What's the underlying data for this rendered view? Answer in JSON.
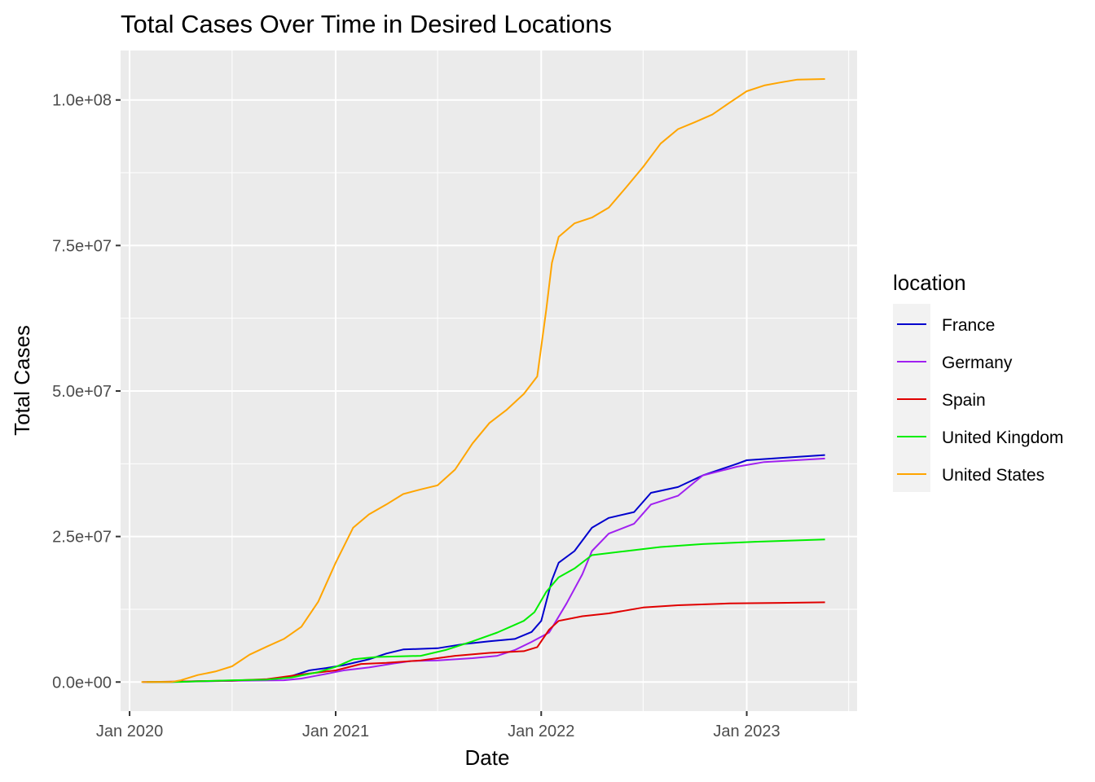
{
  "chart_data": {
    "type": "line",
    "title": "Total Cases Over Time in Desired Locations",
    "xlabel": "Date",
    "ylabel": "Total Cases",
    "x_ticks": [
      "Jan 2020",
      "Jan 2021",
      "Jan 2022",
      "Jan 2023"
    ],
    "y_ticks": [
      "0.0e+00",
      "2.5e+07",
      "5.0e+07",
      "7.5e+07",
      "1.0e+08"
    ],
    "y_tick_values": [
      0,
      25000000,
      50000000,
      75000000,
      100000000
    ],
    "xlim": [
      "2019-12-16",
      "2023-07-16"
    ],
    "ylim": [
      -5000000,
      108500000
    ],
    "grid": true,
    "panel_background": "#ebebeb",
    "legend": {
      "title": "location",
      "position": "right"
    },
    "series": [
      {
        "name": "France",
        "color": "#0000cd",
        "points": [
          [
            "2020-01-24",
            0
          ],
          [
            "2020-03-15",
            5000
          ],
          [
            "2020-05-01",
            150000
          ],
          [
            "2020-07-01",
            200000
          ],
          [
            "2020-09-01",
            400000
          ],
          [
            "2020-10-01",
            700000
          ],
          [
            "2020-10-20",
            1200000
          ],
          [
            "2020-11-15",
            2000000
          ],
          [
            "2020-12-15",
            2400000
          ],
          [
            "2021-01-15",
            2900000
          ],
          [
            "2021-03-01",
            3900000
          ],
          [
            "2021-04-01",
            4900000
          ],
          [
            "2021-05-01",
            5600000
          ],
          [
            "2021-07-01",
            5800000
          ],
          [
            "2021-08-15",
            6500000
          ],
          [
            "2021-10-01",
            7000000
          ],
          [
            "2021-11-15",
            7400000
          ],
          [
            "2021-12-15",
            8600000
          ],
          [
            "2022-01-01",
            10500000
          ],
          [
            "2022-01-20",
            17500000
          ],
          [
            "2022-02-01",
            20500000
          ],
          [
            "2022-03-01",
            22500000
          ],
          [
            "2022-04-01",
            26500000
          ],
          [
            "2022-05-01",
            28200000
          ],
          [
            "2022-06-15",
            29200000
          ],
          [
            "2022-07-15",
            32500000
          ],
          [
            "2022-09-01",
            33500000
          ],
          [
            "2022-10-15",
            35500000
          ],
          [
            "2022-12-15",
            37500000
          ],
          [
            "2023-01-01",
            38100000
          ],
          [
            "2023-03-01",
            38500000
          ],
          [
            "2023-05-20",
            39000000
          ]
        ]
      },
      {
        "name": "Germany",
        "color": "#a020f0",
        "points": [
          [
            "2020-01-27",
            0
          ],
          [
            "2020-04-01",
            50000
          ],
          [
            "2020-07-01",
            200000
          ],
          [
            "2020-10-01",
            300000
          ],
          [
            "2020-11-01",
            600000
          ],
          [
            "2020-12-15",
            1400000
          ],
          [
            "2021-01-15",
            2000000
          ],
          [
            "2021-03-01",
            2500000
          ],
          [
            "2021-04-15",
            3200000
          ],
          [
            "2021-05-15",
            3600000
          ],
          [
            "2021-07-01",
            3700000
          ],
          [
            "2021-09-01",
            4100000
          ],
          [
            "2021-10-15",
            4500000
          ],
          [
            "2021-11-15",
            5500000
          ],
          [
            "2021-12-15",
            6900000
          ],
          [
            "2022-01-15",
            8500000
          ],
          [
            "2022-02-15",
            13500000
          ],
          [
            "2022-03-15",
            18500000
          ],
          [
            "2022-04-01",
            22500000
          ],
          [
            "2022-05-01",
            25500000
          ],
          [
            "2022-06-15",
            27200000
          ],
          [
            "2022-07-15",
            30500000
          ],
          [
            "2022-09-01",
            32000000
          ],
          [
            "2022-10-15",
            35500000
          ],
          [
            "2022-12-15",
            37000000
          ],
          [
            "2023-02-01",
            37800000
          ],
          [
            "2023-05-20",
            38400000
          ]
        ]
      },
      {
        "name": "Spain",
        "color": "#e00000",
        "points": [
          [
            "2020-02-01",
            0
          ],
          [
            "2020-04-01",
            100000
          ],
          [
            "2020-07-01",
            250000
          ],
          [
            "2020-09-01",
            500000
          ],
          [
            "2020-11-01",
            1300000
          ],
          [
            "2021-01-01",
            2000000
          ],
          [
            "2021-02-15",
            3100000
          ],
          [
            "2021-04-01",
            3300000
          ],
          [
            "2021-06-01",
            3700000
          ],
          [
            "2021-08-01",
            4500000
          ],
          [
            "2021-10-01",
            5000000
          ],
          [
            "2021-12-01",
            5300000
          ],
          [
            "2021-12-25",
            6000000
          ],
          [
            "2022-01-15",
            9000000
          ],
          [
            "2022-02-01",
            10500000
          ],
          [
            "2022-03-15",
            11300000
          ],
          [
            "2022-05-01",
            11800000
          ],
          [
            "2022-07-01",
            12800000
          ],
          [
            "2022-09-01",
            13200000
          ],
          [
            "2022-12-01",
            13500000
          ],
          [
            "2023-03-01",
            13600000
          ],
          [
            "2023-05-20",
            13700000
          ]
        ]
      },
      {
        "name": "United Kingdom",
        "color": "#00ee00",
        "points": [
          [
            "2020-01-31",
            0
          ],
          [
            "2020-04-01",
            30000
          ],
          [
            "2020-07-01",
            300000
          ],
          [
            "2020-09-01",
            400000
          ],
          [
            "2020-10-15",
            800000
          ],
          [
            "2020-12-01",
            1700000
          ],
          [
            "2021-01-01",
            2600000
          ],
          [
            "2021-02-01",
            3900000
          ],
          [
            "2021-03-15",
            4300000
          ],
          [
            "2021-06-01",
            4500000
          ],
          [
            "2021-07-15",
            5500000
          ],
          [
            "2021-09-01",
            7000000
          ],
          [
            "2021-10-15",
            8500000
          ],
          [
            "2021-12-01",
            10500000
          ],
          [
            "2021-12-20",
            12000000
          ],
          [
            "2022-01-10",
            15500000
          ],
          [
            "2022-02-01",
            18000000
          ],
          [
            "2022-03-01",
            19500000
          ],
          [
            "2022-04-01",
            21800000
          ],
          [
            "2022-06-01",
            22500000
          ],
          [
            "2022-08-01",
            23200000
          ],
          [
            "2022-10-15",
            23700000
          ],
          [
            "2023-01-15",
            24100000
          ],
          [
            "2023-05-20",
            24500000
          ]
        ]
      },
      {
        "name": "United States",
        "color": "#ffa500",
        "points": [
          [
            "2020-01-22",
            0
          ],
          [
            "2020-03-15",
            10000
          ],
          [
            "2020-04-01",
            300000
          ],
          [
            "2020-05-01",
            1200000
          ],
          [
            "2020-06-01",
            1800000
          ],
          [
            "2020-07-01",
            2700000
          ],
          [
            "2020-08-01",
            4700000
          ],
          [
            "2020-09-01",
            6100000
          ],
          [
            "2020-10-01",
            7400000
          ],
          [
            "2020-11-01",
            9500000
          ],
          [
            "2020-12-01",
            13800000
          ],
          [
            "2021-01-01",
            20500000
          ],
          [
            "2021-02-01",
            26500000
          ],
          [
            "2021-03-01",
            28800000
          ],
          [
            "2021-04-01",
            30500000
          ],
          [
            "2021-05-01",
            32300000
          ],
          [
            "2021-06-01",
            33100000
          ],
          [
            "2021-07-01",
            33800000
          ],
          [
            "2021-08-01",
            36500000
          ],
          [
            "2021-09-01",
            41000000
          ],
          [
            "2021-10-01",
            44500000
          ],
          [
            "2021-11-01",
            46800000
          ],
          [
            "2021-12-01",
            49500000
          ],
          [
            "2021-12-25",
            52500000
          ],
          [
            "2022-01-10",
            64000000
          ],
          [
            "2022-01-20",
            72000000
          ],
          [
            "2022-02-01",
            76500000
          ],
          [
            "2022-03-01",
            78800000
          ],
          [
            "2022-04-01",
            79800000
          ],
          [
            "2022-05-01",
            81500000
          ],
          [
            "2022-06-01",
            85000000
          ],
          [
            "2022-07-01",
            88500000
          ],
          [
            "2022-08-01",
            92500000
          ],
          [
            "2022-09-01",
            95000000
          ],
          [
            "2022-10-01",
            96200000
          ],
          [
            "2022-11-01",
            97500000
          ],
          [
            "2022-12-01",
            99500000
          ],
          [
            "2023-01-01",
            101500000
          ],
          [
            "2023-02-01",
            102500000
          ],
          [
            "2023-03-01",
            103000000
          ],
          [
            "2023-04-01",
            103500000
          ],
          [
            "2023-05-20",
            103600000
          ]
        ]
      }
    ]
  }
}
